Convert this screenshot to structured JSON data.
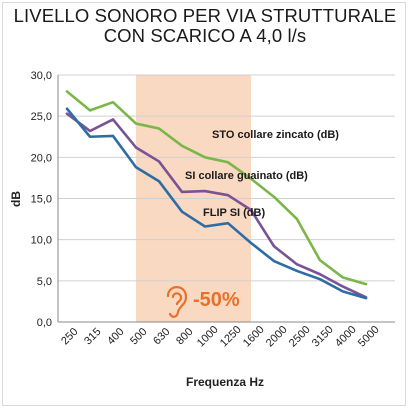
{
  "title_line1": "LIVELLO SONORO PER VIA STRUTTURALE",
  "title_line2": "CON SCARICO A 4,0 l/s",
  "reduction_label": "-50%",
  "ear_icon": "ear-icon",
  "colors": {
    "highlight_band": "#f9d9c2",
    "reduction_text": "#e8702a",
    "ear": "#e8702a",
    "grid": "#d0d0d0"
  },
  "chart_data": {
    "type": "line",
    "title": "LIVELLO SONORO PER VIA STRUTTURALE CON SCARICO A 4,0 l/s",
    "xlabel": "Frequenza Hz",
    "ylabel": "dB",
    "ylim": [
      0,
      30
    ],
    "y_ticks": [
      "0,0",
      "5,0",
      "10,0",
      "15,0",
      "20,0",
      "25,0",
      "30,0"
    ],
    "grid": true,
    "categories": [
      "250",
      "315",
      "400",
      "500",
      "630",
      "800",
      "1000",
      "1250",
      "1600",
      "2000",
      "2500",
      "3150",
      "4000",
      "5000"
    ],
    "highlight_range": [
      "500",
      "1600"
    ],
    "series": [
      {
        "name": "STO collare zincato (dB)",
        "color": "#7ab648",
        "values": [
          28.0,
          25.7,
          26.7,
          24.1,
          23.5,
          21.4,
          20.0,
          19.4,
          17.4,
          15.2,
          12.5,
          7.5,
          5.4,
          4.6
        ]
      },
      {
        "name": "SI collare guainato (dB)",
        "color": "#7a5296",
        "values": [
          25.3,
          23.2,
          24.6,
          21.2,
          19.5,
          15.8,
          15.9,
          15.4,
          13.6,
          9.2,
          7.0,
          5.8,
          4.3,
          3.0
        ]
      },
      {
        "name": "FLIP SI (dB)",
        "color": "#2e6da4",
        "values": [
          25.9,
          22.5,
          22.6,
          18.8,
          17.1,
          13.4,
          11.6,
          12.0,
          9.6,
          7.4,
          6.2,
          5.2,
          3.7,
          2.9
        ]
      }
    ]
  }
}
